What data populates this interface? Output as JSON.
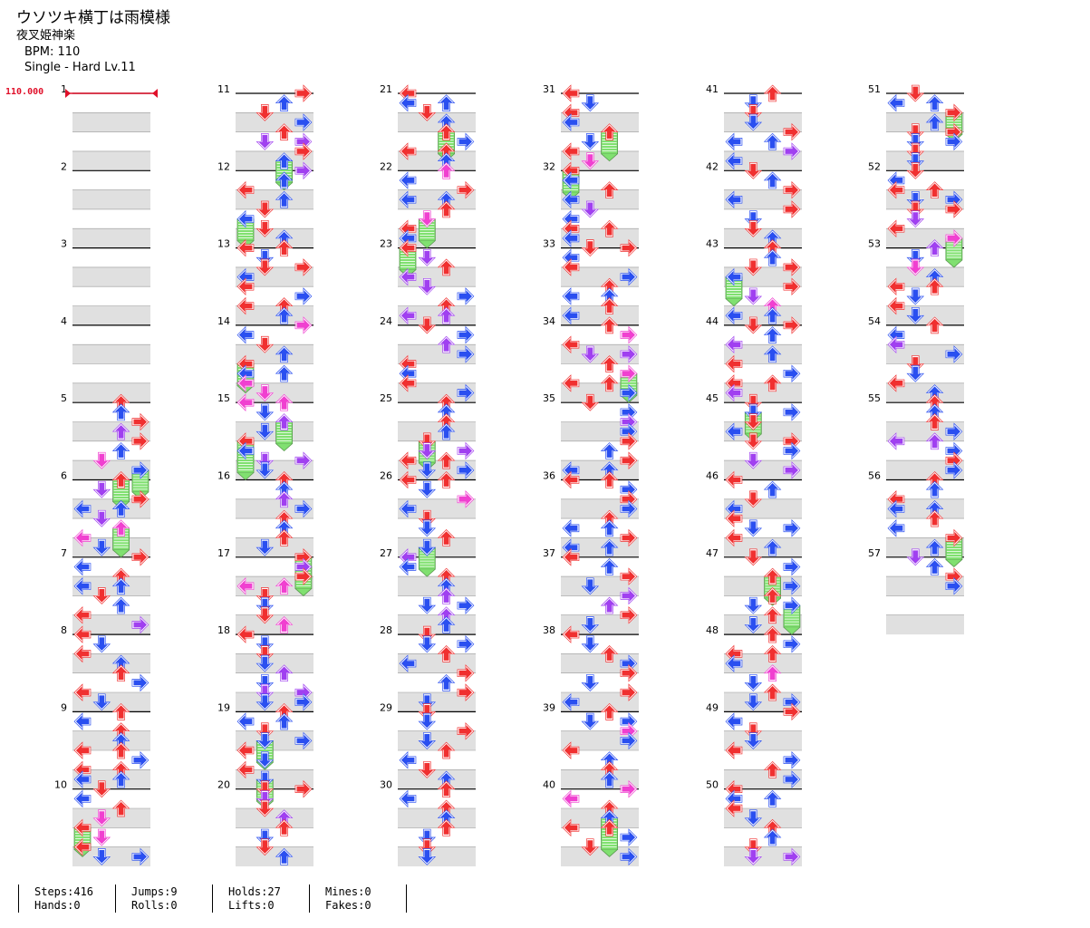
{
  "song": {
    "title": "ウソツキ横丁は雨模様",
    "artist": "夜叉姫神楽",
    "bpm_label": "BPM: 110",
    "difficulty": "Single - Hard  Lv.11",
    "bpm_marker": "110.000"
  },
  "colors": {
    "red": "#f03030",
    "blue": "#2a4ff0",
    "purple": "#a040f0",
    "pink": "#f040d0",
    "hold": "#80e070",
    "band": "#e0e0e0",
    "bpm": "#e0102a"
  },
  "measures": [
    "1",
    "2",
    "3",
    "4",
    "5",
    "6",
    "7",
    "8",
    "9",
    "10",
    "11",
    "12",
    "13",
    "14",
    "15",
    "16",
    "17",
    "18",
    "19",
    "20",
    "21",
    "22",
    "23",
    "24",
    "25",
    "26",
    "27",
    "28",
    "29",
    "30",
    "31",
    "32",
    "33",
    "34",
    "35",
    "36",
    "37",
    "38",
    "39",
    "40",
    "41",
    "42",
    "43",
    "44",
    "45",
    "46",
    "47",
    "48",
    "49",
    "50",
    "51",
    "52",
    "53",
    "54",
    "55",
    "56",
    "57"
  ],
  "stats": {
    "steps": "Steps:416",
    "jumps": "Jumps:9",
    "holds": "Holds:27",
    "mines": "Mines:0",
    "hands": "Hands:0",
    "rolls": "Rolls:0",
    "lifts": "Lifts:0",
    "fakes": "Fakes:0"
  }
}
